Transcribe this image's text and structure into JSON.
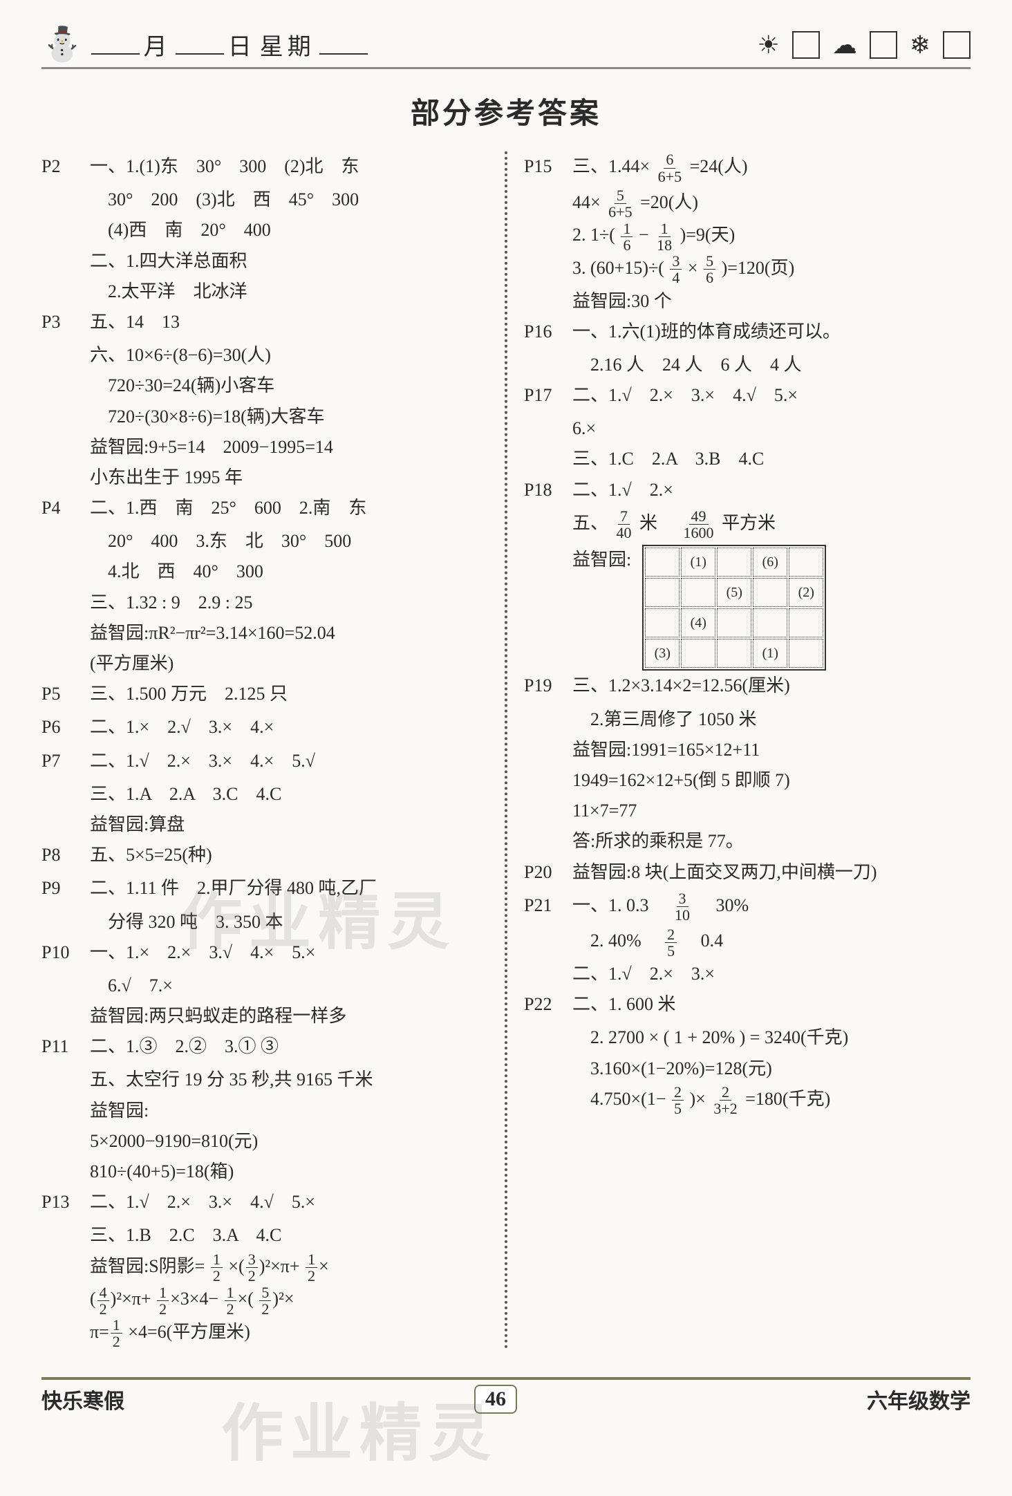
{
  "header": {
    "month_label": "月",
    "day_label": "日",
    "weekday_label": "星期",
    "weather_icons": [
      "☀",
      "☁",
      "❄"
    ]
  },
  "title": "部分参考答案",
  "left": [
    {
      "p": "P2",
      "lines": [
        "一、1.(1)东　30°　300　(2)北　东",
        "　30°　200　(3)北　西　45°　300",
        "　(4)西　南　20°　400",
        "二、1.四大洋总面积",
        "　2.太平洋　北冰洋"
      ]
    },
    {
      "p": "P3",
      "lines": [
        "五、14　13",
        "六、10×6÷(8−6)=30(人)",
        "　720÷30=24(辆)小客车",
        "　720÷(30×8÷6)=18(辆)大客车",
        "益智园:9+5=14　2009−1995=14",
        "小东出生于 1995 年"
      ]
    },
    {
      "p": "P4",
      "lines": [
        "二、1.西　南　25°　600　2.南　东",
        "　20°　400　3.东　北　30°　500",
        "　4.北　西　40°　300",
        "三、1.32 : 9　2.9 : 25",
        "益智园:πR²−πr²=3.14×160=52.04",
        "(平方厘米)"
      ]
    },
    {
      "p": "P5",
      "lines": [
        "三、1.500 万元　2.125 只"
      ]
    },
    {
      "p": "P6",
      "lines": [
        "二、1.×　2.√　3.×　4.×"
      ]
    },
    {
      "p": "P7",
      "lines": [
        "二、1.√　2.×　3.×　4.×　5.√",
        "三、1.A　2.A　3.C　4.C",
        "益智园:算盘"
      ]
    },
    {
      "p": "P8",
      "lines": [
        "五、5×5=25(种)"
      ]
    },
    {
      "p": "P9",
      "lines": [
        "二、1.11 件　2.甲厂分得 480 吨,乙厂",
        "　分得 320 吨　3. 350 本"
      ]
    },
    {
      "p": "P10",
      "lines": [
        "一、1.×　2.×　3.√　4.×　5.×",
        "　6.√　7.×",
        "益智园:两只蚂蚁走的路程一样多"
      ]
    },
    {
      "p": "P11",
      "lines": [
        "二、1.③　2.②　3.① ③",
        "五、太空行 19 分 35 秒,共 9165 千米",
        "益智园:",
        "5×2000−9190=810(元)",
        "810÷(40+5)=18(箱)"
      ]
    },
    {
      "p": "P13",
      "lines": [
        "二、1.√　2.×　3.×　4.√　5.×",
        "三、1.B　2.C　3.A　4.C"
      ]
    }
  ],
  "p13_yizhi_prefix": "益智园:S阴影=",
  "p13_tail": "×4=6(平方厘米)",
  "right": [
    {
      "p": "P15",
      "frac_lines": true
    },
    {
      "p": "P16",
      "lines": [
        "一、1.六(1)班的体育成绩还可以。",
        "　2.16 人　24 人　6 人　4 人"
      ]
    },
    {
      "p": "P17",
      "lines": [
        "二、1.√　2.×　3.×　4.√　5.×",
        "6.×",
        "三、1.C　2.A　3.B　4.C"
      ]
    },
    {
      "p": "P18",
      "lines": [
        "二、1.√　2.×"
      ]
    },
    {
      "p": "P19",
      "lines": [
        "三、1.2×3.14×2=12.56(厘米)",
        "　2.第三周修了 1050 米",
        "益智园:1991=165×12+11",
        "1949=162×12+5(倒 5 即顺 7)",
        "11×7=77",
        "答:所求的乘积是 77。"
      ]
    },
    {
      "p": "P20",
      "lines": [
        "益智园:8 块(上面交叉两刀,中间横一刀)"
      ]
    },
    {
      "p": "P21",
      "frac_lines": true
    },
    {
      "p": "P22",
      "frac_lines": true
    }
  ],
  "p15": {
    "l1_pre": "三、1.44×",
    "l1_num": "6",
    "l1_den": "6+5",
    "l1_post": "=24(人)",
    "l2_pre": "44×",
    "l2_num": "5",
    "l2_den": "6+5",
    "l2_post": "=20(人)",
    "l3_pre": "2. 1÷(",
    "l3a_num": "1",
    "l3a_den": "6",
    "l3_mid": "−",
    "l3b_num": "1",
    "l3b_den": "18",
    "l3_post": ")=9(天)",
    "l4_pre": "3. (60+15)÷(",
    "l4a_num": "3",
    "l4a_den": "4",
    "l4_mid": "×",
    "l4b_num": "5",
    "l4b_den": "6",
    "l4_post": ")=120(页)",
    "l5": "益智园:30 个"
  },
  "p18_five": {
    "pre": "五、",
    "a_num": "7",
    "a_den": "40",
    "mid": "米　",
    "b_num": "49",
    "b_den": "1600",
    "post": "平方米",
    "yz_label": "益智园:",
    "grid": [
      [
        "",
        "(1)",
        "",
        "(6)",
        ""
      ],
      [
        "",
        "",
        "(5)",
        "",
        "(2)"
      ],
      [
        "",
        "(4)",
        "",
        "",
        ""
      ],
      [
        "(3)",
        "",
        "",
        "(1)",
        ""
      ]
    ]
  },
  "p21": {
    "l1_pre": "一、1. 0.3　",
    "l1_num": "3",
    "l1_den": "10",
    "l1_post": "　30%",
    "l2_pre": "　2. 40%　",
    "l2_num": "2",
    "l2_den": "5",
    "l2_post": "　0.4",
    "l3": "二、1.√　2.×　3.×"
  },
  "p22": {
    "l1": "二、1. 600 米",
    "l2": "　2. 2700 × ( 1 + 20% ) = 3240(千克)",
    "l3": "　3.160×(1−20%)=128(元)",
    "l4_pre": "　4.750×(1−",
    "l4a_num": "2",
    "l4a_den": "5",
    "l4_mid": ")×",
    "l4b_num": "2",
    "l4b_den": "3+2",
    "l4_post": "=180(千克)"
  },
  "p13_expr": {
    "a_num": "1",
    "a_den": "2",
    "b_num": "3",
    "b_den": "2",
    "c_num": "1",
    "c_den": "2",
    "d_num": "4",
    "d_den": "2",
    "e_num": "1",
    "e_den": "2",
    "f_num": "1",
    "f_den": "2",
    "g_num": "5",
    "g_den": "2",
    "h_num": "1",
    "h_den": "2"
  },
  "footer": {
    "left": "快乐寒假",
    "page": "46",
    "right": "六年级数学"
  },
  "watermark": "作业精灵"
}
